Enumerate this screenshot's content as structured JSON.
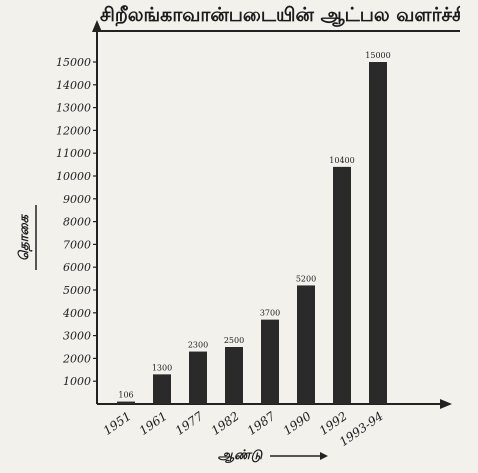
{
  "chart_data": {
    "type": "bar",
    "title": "சிறீலங்காவான்படையின் ஆட்பல வளர்ச்சி",
    "xlabel": "ஆண்டு",
    "ylabel": "தொகை",
    "categories": [
      "1951",
      "1961",
      "1977",
      "1982",
      "1987",
      "1990",
      "1992",
      "1993-94"
    ],
    "values": [
      106,
      1300,
      2300,
      2500,
      3700,
      5200,
      10400,
      15000
    ],
    "data_labels": [
      "106",
      "1300",
      "2300",
      "2500",
      "3700",
      "5200",
      "10400",
      "15000"
    ],
    "yticks": [
      "1000",
      "2000",
      "3000",
      "4000",
      "5000",
      "6000",
      "7000",
      "8000",
      "9000",
      "10000",
      "11000",
      "12000",
      "13000",
      "14000",
      "15000"
    ],
    "ylim": [
      0,
      15000
    ],
    "grid": false,
    "colors": {
      "bar": "#2a2a2a",
      "axis": "#222222",
      "background": "#f3f1ec"
    }
  }
}
